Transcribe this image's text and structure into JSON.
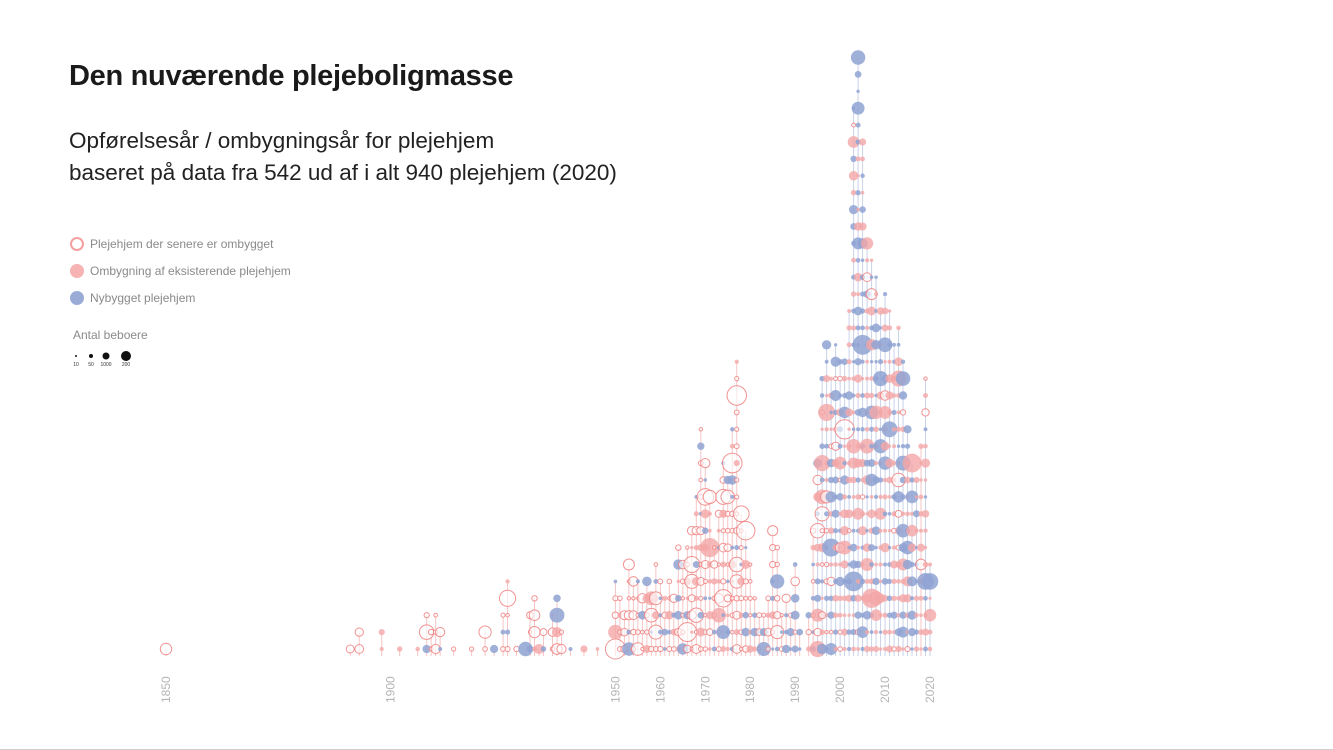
{
  "header": {
    "title": "Den nuværende plejeboligmasse",
    "subtitle_line1": "Opførelsesår / ombygningsår for plejehjem",
    "subtitle_line2": "baseret på data fra 542 ud af i alt 940 plejehjem (2020)"
  },
  "legend": {
    "items": [
      {
        "label": "Plejehjem der senere er ombygget",
        "style": "hollow",
        "color": "#f4a0a0"
      },
      {
        "label": "Ombygning af eksisterende plejehjem",
        "style": "filled",
        "color": "#f7b3b3"
      },
      {
        "label": "Nybygget plejehjem",
        "style": "filled",
        "color": "#9aacd6"
      }
    ],
    "size_title": "Antal beboere",
    "size_items": [
      {
        "label": "10",
        "value": 10
      },
      {
        "label": "50",
        "value": 50
      },
      {
        "label": "1000",
        "value": 1000
      },
      {
        "label": "200",
        "value": 200
      }
    ]
  },
  "colors": {
    "hollow": "#f08080",
    "renovated": "#f4a6a6",
    "new": "#8fa3d2",
    "stem": "#f3b2b2",
    "stem_blue": "#b9c4e3",
    "axis_text": "#b5b5b5"
  },
  "chart_data": {
    "type": "scatter",
    "title": "Den nuværende plejeboligmasse",
    "subtitle": "Opførelsesår / ombygningsår for plejehjem baseret på data fra 542 ud af i alt 940 plejehjem (2020)",
    "xlabel": "",
    "ylabel": "",
    "xlim": [
      1850,
      2020
    ],
    "x_ticks": [
      "1850",
      "1900",
      "1950",
      "1960",
      "1970",
      "1980",
      "1990",
      "2000",
      "2010",
      "2020"
    ],
    "x_tick_values": [
      1850,
      1900,
      1950,
      1960,
      1970,
      1980,
      1990,
      2000,
      2010,
      2020
    ],
    "series_names": [
      "Plejehjem der senere er ombygget",
      "Ombygning af eksisterende plejehjem",
      "Nybygget plejehjem"
    ],
    "counts_per_year_estimated": [
      [
        1850,
        1
      ],
      [
        1891,
        1
      ],
      [
        1893,
        2
      ],
      [
        1898,
        2
      ],
      [
        1902,
        1
      ],
      [
        1906,
        1
      ],
      [
        1908,
        3
      ],
      [
        1909,
        2
      ],
      [
        1910,
        3
      ],
      [
        1911,
        2
      ],
      [
        1914,
        1
      ],
      [
        1918,
        1
      ],
      [
        1921,
        2
      ],
      [
        1923,
        1
      ],
      [
        1925,
        3
      ],
      [
        1926,
        5
      ],
      [
        1928,
        1
      ],
      [
        1930,
        1
      ],
      [
        1931,
        3
      ],
      [
        1932,
        4
      ],
      [
        1933,
        1
      ],
      [
        1934,
        2
      ],
      [
        1936,
        3
      ],
      [
        1937,
        4
      ],
      [
        1938,
        2
      ],
      [
        1940,
        1
      ],
      [
        1943,
        1
      ],
      [
        1946,
        1
      ],
      [
        1950,
        5
      ],
      [
        1951,
        4
      ],
      [
        1952,
        3
      ],
      [
        1953,
        6
      ],
      [
        1954,
        5
      ],
      [
        1955,
        5
      ],
      [
        1956,
        4
      ],
      [
        1957,
        5
      ],
      [
        1958,
        4
      ],
      [
        1959,
        6
      ],
      [
        1960,
        5
      ],
      [
        1961,
        4
      ],
      [
        1962,
        5
      ],
      [
        1963,
        4
      ],
      [
        1964,
        7
      ],
      [
        1965,
        6
      ],
      [
        1966,
        7
      ],
      [
        1967,
        8
      ],
      [
        1968,
        10
      ],
      [
        1969,
        14
      ],
      [
        1970,
        12
      ],
      [
        1971,
        10
      ],
      [
        1972,
        7
      ],
      [
        1973,
        9
      ],
      [
        1974,
        12
      ],
      [
        1975,
        11
      ],
      [
        1976,
        14
      ],
      [
        1977,
        18
      ],
      [
        1978,
        9
      ],
      [
        1979,
        8
      ],
      [
        1980,
        6
      ],
      [
        1981,
        4
      ],
      [
        1982,
        3
      ],
      [
        1983,
        3
      ],
      [
        1984,
        4
      ],
      [
        1985,
        8
      ],
      [
        1986,
        7
      ],
      [
        1987,
        3
      ],
      [
        1988,
        4
      ],
      [
        1989,
        3
      ],
      [
        1990,
        6
      ],
      [
        1991,
        2
      ],
      [
        1993,
        3
      ],
      [
        1994,
        8
      ],
      [
        1995,
        12
      ],
      [
        1996,
        17
      ],
      [
        1997,
        19
      ],
      [
        1998,
        17
      ],
      [
        1999,
        19
      ],
      [
        2000,
        18
      ],
      [
        2001,
        18
      ],
      [
        2002,
        21
      ],
      [
        2003,
        33
      ],
      [
        2004,
        36
      ],
      [
        2005,
        31
      ],
      [
        2006,
        25
      ],
      [
        2007,
        24
      ],
      [
        2008,
        23
      ],
      [
        2009,
        21
      ],
      [
        2010,
        22
      ],
      [
        2011,
        21
      ],
      [
        2012,
        19
      ],
      [
        2013,
        20
      ],
      [
        2014,
        18
      ],
      [
        2015,
        14
      ],
      [
        2016,
        12
      ],
      [
        2017,
        11
      ],
      [
        2018,
        13
      ],
      [
        2019,
        17
      ],
      [
        2020,
        6
      ]
    ]
  }
}
